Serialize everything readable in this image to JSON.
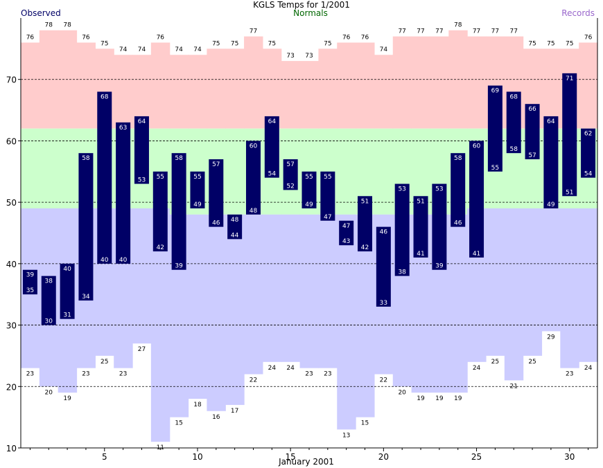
{
  "chart_data": {
    "type": "bar",
    "title": "KGLS Temps for 1/2001",
    "xlabel": "January 2001",
    "ylabel": "",
    "ylim": [
      10,
      80
    ],
    "xlim": [
      0.5,
      31.5
    ],
    "yticks": [
      10,
      20,
      30,
      40,
      50,
      60,
      70
    ],
    "xticks": [
      5,
      10,
      15,
      20,
      25,
      30
    ],
    "grid": "horizontal dashed at 20, 30, 40, 50, 60, 70",
    "legend": [
      {
        "name": "Observed",
        "position": "top-left",
        "color": "#000066"
      },
      {
        "name": "Normals",
        "position": "top-center",
        "color": "#006600"
      },
      {
        "name": "Records",
        "position": "top-right",
        "color": "#9966cc"
      }
    ],
    "days": [
      1,
      2,
      3,
      4,
      5,
      6,
      7,
      8,
      9,
      10,
      11,
      12,
      13,
      14,
      15,
      16,
      17,
      18,
      19,
      20,
      21,
      22,
      23,
      24,
      25,
      26,
      27,
      28,
      29,
      30,
      31
    ],
    "series": [
      {
        "name": "Records",
        "part": "record high",
        "values": [
          76,
          78,
          78,
          76,
          75,
          74,
          74,
          76,
          74,
          74,
          75,
          75,
          77,
          75,
          73,
          73,
          75,
          76,
          76,
          74,
          77,
          77,
          77,
          78,
          77,
          77,
          77,
          75,
          75,
          75,
          76
        ]
      },
      {
        "name": "Normals",
        "part": "normal high",
        "values": [
          62,
          62,
          62,
          62,
          62,
          62,
          62,
          62,
          62,
          62,
          62,
          62,
          62,
          62,
          62,
          62,
          62,
          62,
          62,
          62,
          62,
          62,
          62,
          62,
          62,
          62,
          62,
          62,
          62,
          62,
          62
        ]
      },
      {
        "name": "Normals",
        "part": "normal low",
        "values": [
          49,
          49,
          49,
          49,
          49,
          49,
          49,
          49,
          48,
          48,
          48,
          48,
          48,
          48,
          48,
          48,
          48,
          48,
          48,
          48,
          48,
          48,
          48,
          48,
          49,
          49,
          49,
          49,
          49,
          49,
          49
        ]
      },
      {
        "name": "Records",
        "part": "record low",
        "values": [
          23,
          20,
          19,
          23,
          25,
          23,
          27,
          11,
          15,
          18,
          16,
          17,
          22,
          24,
          24,
          23,
          23,
          13,
          15,
          22,
          20,
          19,
          19,
          19,
          24,
          25,
          21,
          25,
          29,
          23,
          24
        ]
      },
      {
        "name": "Observed",
        "part": "observed high",
        "values": [
          39,
          38,
          40,
          58,
          68,
          63,
          64,
          55,
          58,
          55,
          57,
          48,
          60,
          64,
          57,
          55,
          55,
          47,
          51,
          46,
          53,
          51,
          53,
          58,
          60,
          69,
          68,
          66,
          64,
          71,
          62
        ]
      },
      {
        "name": "Observed",
        "part": "observed low",
        "values": [
          35,
          30,
          31,
          34,
          40,
          40,
          53,
          42,
          39,
          49,
          46,
          44,
          48,
          54,
          52,
          49,
          47,
          43,
          42,
          33,
          38,
          41,
          39,
          46,
          41,
          55,
          58,
          57,
          49,
          51,
          54
        ]
      }
    ],
    "colors": {
      "record_high_band": "#ffcccc",
      "normal_band": "#ccffcc",
      "record_low_band": "#ccccff",
      "observed_bar": "#000066",
      "observed_label": "#ffffff",
      "title": "#000000",
      "observed_legend": "#000066",
      "normals_legend": "#006600",
      "records_legend": "#9966cc"
    }
  }
}
